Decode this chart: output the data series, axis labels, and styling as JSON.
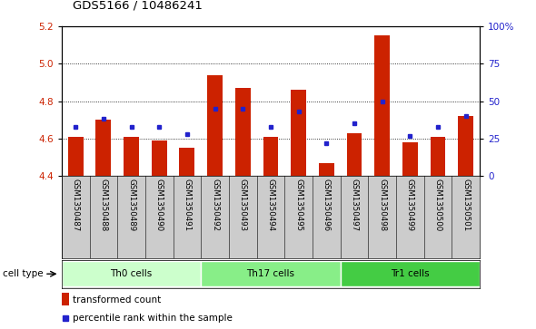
{
  "title": "GDS5166 / 10486241",
  "samples": [
    "GSM1350487",
    "GSM1350488",
    "GSM1350489",
    "GSM1350490",
    "GSM1350491",
    "GSM1350492",
    "GSM1350493",
    "GSM1350494",
    "GSM1350495",
    "GSM1350496",
    "GSM1350497",
    "GSM1350498",
    "GSM1350499",
    "GSM1350500",
    "GSM1350501"
  ],
  "bar_values": [
    4.61,
    4.7,
    4.61,
    4.59,
    4.55,
    4.94,
    4.87,
    4.61,
    4.86,
    4.47,
    4.63,
    5.15,
    4.58,
    4.61,
    4.72
  ],
  "percentile_values": [
    33,
    38,
    33,
    33,
    28,
    45,
    45,
    33,
    43,
    22,
    35,
    50,
    27,
    33,
    40
  ],
  "bar_color": "#cc2200",
  "dot_color": "#2222cc",
  "ylim_left": [
    4.4,
    5.2
  ],
  "ylim_right": [
    0,
    100
  ],
  "yticks_left": [
    4.4,
    4.6,
    4.8,
    5.0,
    5.2
  ],
  "yticks_right": [
    0,
    25,
    50,
    75,
    100
  ],
  "yticklabels_right": [
    "0",
    "25",
    "50",
    "75",
    "100%"
  ],
  "cell_types": [
    {
      "label": "Th0 cells",
      "start": 0,
      "end": 5,
      "color": "#ccffcc"
    },
    {
      "label": "Th17 cells",
      "start": 5,
      "end": 10,
      "color": "#88ee88"
    },
    {
      "label": "Tr1 cells",
      "start": 10,
      "end": 15,
      "color": "#44cc44"
    }
  ],
  "cell_type_label": "cell type",
  "legend_bar_label": "transformed count",
  "legend_dot_label": "percentile rank within the sample",
  "sample_bg_color": "#cccccc",
  "plot_bg_color": "#ffffff",
  "base_value": 4.4,
  "bar_width": 0.55
}
